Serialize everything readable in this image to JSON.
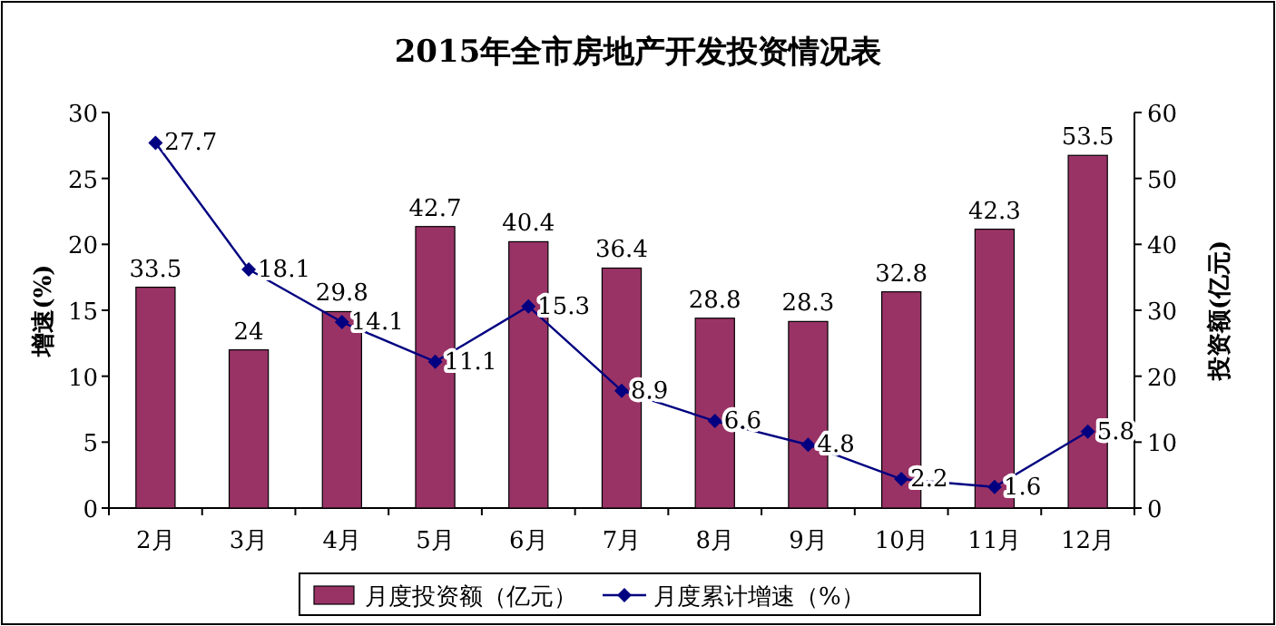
{
  "chart_data": {
    "type": "bar",
    "title": "2015年全市房地产开发投资情况表",
    "ylabel": "增速(%)",
    "y2label": "投资额(亿元)",
    "categories": [
      "2月",
      "3月",
      "4月",
      "5月",
      "6月",
      "7月",
      "8月",
      "9月",
      "10月",
      "11月",
      "12月"
    ],
    "series": [
      {
        "name": "月度投资额（亿元）",
        "axis": "y2",
        "color": "#993366",
        "values": [
          33.5,
          24,
          29.8,
          42.7,
          40.4,
          36.4,
          28.8,
          28.3,
          32.8,
          42.3,
          53.5
        ]
      },
      {
        "name": "月度累计增速（%）",
        "type": "line",
        "axis": "y",
        "color": "#000080",
        "marker": "diamond",
        "values": [
          27.7,
          18.1,
          14.1,
          11.1,
          15.3,
          8.9,
          6.6,
          4.8,
          2.2,
          1.6,
          5.8
        ]
      }
    ],
    "ylim": [
      0,
      30
    ],
    "yticks": [
      0,
      5,
      10,
      15,
      20,
      25,
      30
    ],
    "y2lim": [
      0,
      60
    ],
    "y2ticks": [
      0,
      10,
      20,
      30,
      40,
      50,
      60
    ],
    "data_labels": true,
    "grid": false,
    "legend": "bottom"
  }
}
